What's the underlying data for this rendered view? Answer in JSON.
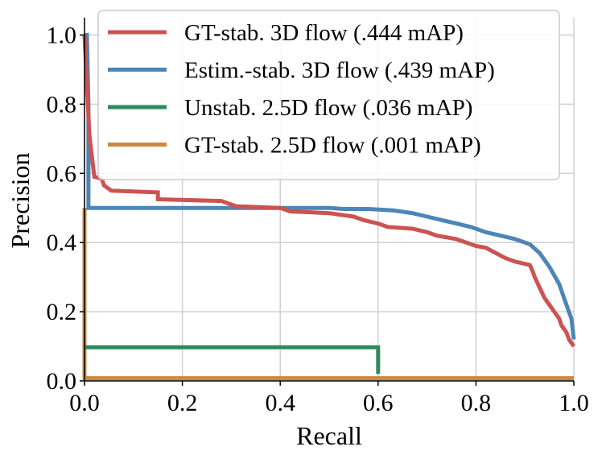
{
  "chart_data": {
    "type": "line",
    "title": "",
    "xlabel": "Recall",
    "ylabel": "Precision",
    "xlim": [
      0.0,
      1.0
    ],
    "ylim": [
      0.0,
      1.05
    ],
    "grid": true,
    "legend_position": "top-right",
    "x_ticks": [
      0.0,
      0.2,
      0.4,
      0.6,
      0.8,
      1.0
    ],
    "x_tick_labels": [
      "0.0",
      "0.2",
      "0.4",
      "0.6",
      "0.8",
      "1.0"
    ],
    "y_ticks": [
      0.0,
      0.2,
      0.4,
      0.6,
      0.8,
      1.0
    ],
    "y_tick_labels": [
      "0.0",
      "0.2",
      "0.4",
      "0.6",
      "0.8",
      "1.0"
    ],
    "series": [
      {
        "name": "GT-stab. 3D flow (.444 mAP)",
        "color": "#cc5351",
        "points": [
          [
            0.0,
            1.0
          ],
          [
            0.01,
            0.71
          ],
          [
            0.015,
            0.65
          ],
          [
            0.02,
            0.59
          ],
          [
            0.035,
            0.585
          ],
          [
            0.04,
            0.565
          ],
          [
            0.055,
            0.55
          ],
          [
            0.15,
            0.545
          ],
          [
            0.15,
            0.525
          ],
          [
            0.28,
            0.52
          ],
          [
            0.29,
            0.515
          ],
          [
            0.31,
            0.505
          ],
          [
            0.4,
            0.5
          ],
          [
            0.42,
            0.49
          ],
          [
            0.5,
            0.485
          ],
          [
            0.55,
            0.475
          ],
          [
            0.57,
            0.465
          ],
          [
            0.6,
            0.455
          ],
          [
            0.62,
            0.445
          ],
          [
            0.67,
            0.44
          ],
          [
            0.7,
            0.43
          ],
          [
            0.72,
            0.42
          ],
          [
            0.76,
            0.41
          ],
          [
            0.78,
            0.4
          ],
          [
            0.8,
            0.39
          ],
          [
            0.82,
            0.385
          ],
          [
            0.84,
            0.37
          ],
          [
            0.86,
            0.355
          ],
          [
            0.88,
            0.345
          ],
          [
            0.91,
            0.335
          ],
          [
            0.915,
            0.32
          ],
          [
            0.92,
            0.3
          ],
          [
            0.93,
            0.27
          ],
          [
            0.94,
            0.24
          ],
          [
            0.95,
            0.22
          ],
          [
            0.96,
            0.2
          ],
          [
            0.97,
            0.18
          ],
          [
            0.975,
            0.16
          ],
          [
            0.98,
            0.15
          ],
          [
            0.985,
            0.14
          ],
          [
            0.99,
            0.12
          ],
          [
            0.995,
            0.11
          ],
          [
            1.0,
            0.1
          ]
        ]
      },
      {
        "name": "Estim.-stab. 3D flow (.439 mAP)",
        "color": "#4c85b8",
        "points": [
          [
            0.0,
            1.0
          ],
          [
            0.005,
            1.0
          ],
          [
            0.008,
            0.8
          ],
          [
            0.008,
            0.5
          ],
          [
            0.3,
            0.5
          ],
          [
            0.5,
            0.5
          ],
          [
            0.53,
            0.497
          ],
          [
            0.58,
            0.497
          ],
          [
            0.63,
            0.493
          ],
          [
            0.67,
            0.485
          ],
          [
            0.7,
            0.475
          ],
          [
            0.73,
            0.465
          ],
          [
            0.76,
            0.455
          ],
          [
            0.79,
            0.445
          ],
          [
            0.82,
            0.43
          ],
          [
            0.85,
            0.42
          ],
          [
            0.88,
            0.41
          ],
          [
            0.91,
            0.395
          ],
          [
            0.93,
            0.37
          ],
          [
            0.95,
            0.33
          ],
          [
            0.97,
            0.28
          ],
          [
            0.98,
            0.24
          ],
          [
            0.99,
            0.2
          ],
          [
            0.995,
            0.18
          ],
          [
            1.0,
            0.12
          ]
        ]
      },
      {
        "name": "Unstab. 2.5D flow (.036 mAP)",
        "color": "#2e8a5a",
        "points": [
          [
            0.0,
            0.097
          ],
          [
            0.6,
            0.097
          ],
          [
            0.6,
            0.02
          ]
        ]
      },
      {
        "name": "GT-stab. 2.5D flow (.001 mAP)",
        "color": "#d0883e",
        "points": [
          [
            0.0,
            0.5
          ],
          [
            0.0,
            0.008
          ],
          [
            1.0,
            0.008
          ]
        ]
      }
    ]
  }
}
